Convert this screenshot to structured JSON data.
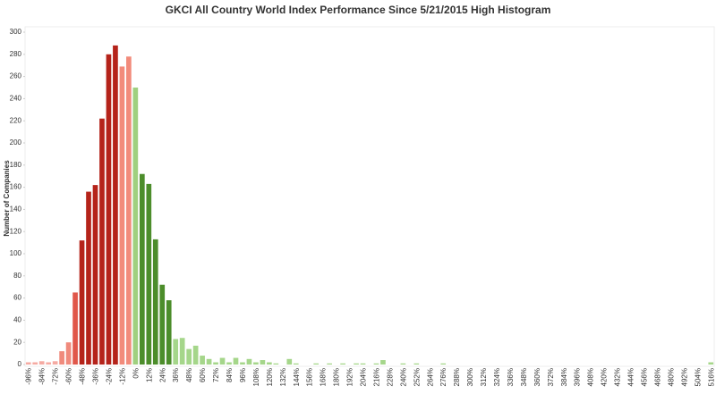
{
  "chart_data": {
    "type": "bar",
    "title": "GKCI All Country World Index Performance Since 5/21/2015 High Histogram",
    "y_label": "Number of Companies",
    "categories": [
      "-96%",
      null,
      "-84%",
      null,
      "-72%",
      null,
      "-60%",
      null,
      "-48%",
      null,
      "-36%",
      null,
      "-24%",
      null,
      "-12%",
      null,
      "0%",
      null,
      "12%",
      null,
      "24%",
      null,
      "36%",
      null,
      "48%",
      null,
      "60%",
      null,
      "72%",
      null,
      "84%",
      null,
      "96%",
      null,
      "108%",
      null,
      "120%",
      null,
      "132%",
      null,
      "144%",
      null,
      "156%",
      null,
      "168%",
      null,
      "180%",
      null,
      "192%",
      null,
      "204%",
      null,
      "216%",
      null,
      "228%",
      null,
      "240%",
      null,
      "252%",
      null,
      "264%",
      null,
      "276%",
      null,
      "288%",
      null,
      "300%",
      null,
      "312%",
      null,
      "324%",
      null,
      "336%",
      null,
      "348%",
      null,
      "360%",
      null,
      "372%",
      null,
      "384%",
      null,
      "396%",
      null,
      "408%",
      null,
      "420%",
      null,
      "432%",
      null,
      "444%",
      null,
      "456%",
      null,
      "468%",
      null,
      "480%",
      null,
      "492%",
      null,
      "504%",
      null,
      "516%"
    ],
    "values": [
      2,
      2,
      3,
      2,
      3,
      12,
      20,
      65,
      112,
      156,
      162,
      222,
      280,
      288,
      269,
      278,
      250,
      172,
      163,
      113,
      72,
      58,
      23,
      24,
      14,
      17,
      8,
      5,
      2,
      6,
      2,
      6,
      2,
      5,
      2,
      4,
      2,
      1,
      0,
      5,
      1,
      0,
      0,
      1,
      0,
      1,
      0,
      1,
      0,
      1,
      1,
      0,
      1,
      4,
      0,
      0,
      1,
      0,
      1,
      0,
      0,
      0,
      1,
      0,
      0,
      0,
      0,
      0,
      0,
      0,
      0,
      0,
      0,
      0,
      0,
      0,
      0,
      0,
      0,
      0,
      0,
      0,
      0,
      0,
      0,
      0,
      0,
      0,
      0,
      0,
      0,
      0,
      0,
      0,
      0,
      0,
      0,
      0,
      0,
      0,
      0,
      0,
      2
    ],
    "colors": [
      "#f5aaa2",
      "#f5aaa2",
      "#f5aaa2",
      "#f5aaa2",
      "#f5aaa2",
      "#f08a7c",
      "#f08a7c",
      "#e0574a",
      "#b5231a",
      "#b5231a",
      "#b5231a",
      "#b5231a",
      "#b5231a",
      "#b5231a",
      "#f28b7b",
      "#f28b7b",
      "#9fd07f",
      "#4c8d2b",
      "#4c8d2b",
      "#4c8d2b",
      "#4c8d2b",
      "#4c8d2b",
      "#a5d68a",
      "#a5d68a",
      "#a5d68a",
      "#a5d68a",
      "#a5d68a",
      "#a5d68a",
      "#a5d68a",
      "#a5d68a",
      "#a5d68a",
      "#a5d68a",
      "#a5d68a",
      "#a5d68a",
      "#a5d68a",
      "#a5d68a",
      "#a5d68a",
      "#a5d68a",
      "#a5d68a",
      "#a5d68a",
      "#a5d68a",
      "#a5d68a",
      "#a5d68a",
      "#a5d68a",
      "#a5d68a",
      "#a5d68a",
      "#a5d68a",
      "#a5d68a",
      "#a5d68a",
      "#a5d68a",
      "#a5d68a",
      "#a5d68a",
      "#a5d68a",
      "#a5d68a",
      "#a5d68a",
      "#a5d68a",
      "#a5d68a",
      "#a5d68a",
      "#a5d68a",
      "#a5d68a",
      "#a5d68a",
      "#a5d68a",
      "#a5d68a",
      "#a5d68a",
      "#a5d68a",
      "#a5d68a",
      "#a5d68a",
      "#a5d68a",
      "#a5d68a",
      "#a5d68a",
      "#a5d68a",
      "#a5d68a",
      "#a5d68a",
      "#a5d68a",
      "#a5d68a",
      "#a5d68a",
      "#a5d68a",
      "#a5d68a",
      "#a5d68a",
      "#a5d68a",
      "#a5d68a",
      "#a5d68a",
      "#a5d68a",
      "#a5d68a",
      "#a5d68a",
      "#a5d68a",
      "#a5d68a",
      "#a5d68a",
      "#a5d68a",
      "#a5d68a",
      "#a5d68a",
      "#a5d68a",
      "#a5d68a",
      "#a5d68a",
      "#a5d68a",
      "#a5d68a",
      "#a5d68a",
      "#a5d68a",
      "#a5d68a",
      "#a5d68a",
      "#a5d68a",
      "#a5d68a",
      "#a5d68a"
    ],
    "ylim": [
      0,
      300
    ],
    "yticks": [
      0,
      20,
      40,
      60,
      80,
      100,
      120,
      140,
      160,
      180,
      200,
      220,
      240,
      260,
      280,
      300
    ]
  }
}
